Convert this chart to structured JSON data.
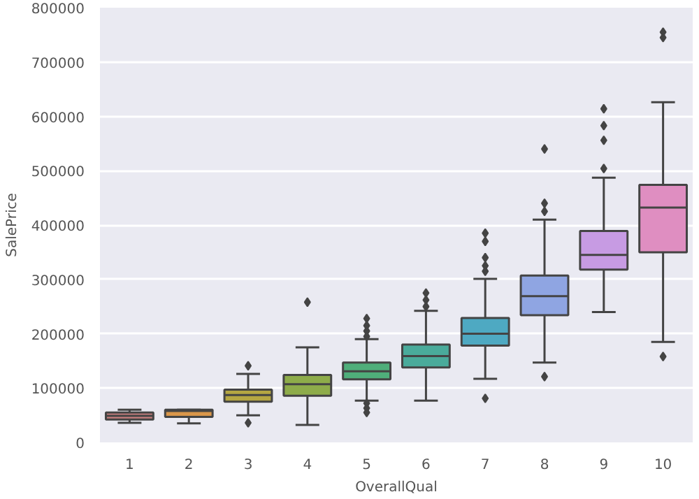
{
  "chart_data": {
    "type": "box",
    "xlabel": "OverallQual",
    "ylabel": "SalePrice",
    "categories": [
      "1",
      "2",
      "3",
      "4",
      "5",
      "6",
      "7",
      "8",
      "9",
      "10"
    ],
    "colors": [
      "#c87e7e",
      "#d9964a",
      "#b5a642",
      "#8eac4a",
      "#4fae7a",
      "#4aab9b",
      "#4ea9c2",
      "#8fa5e2",
      "#c79be3",
      "#df8ec1"
    ],
    "boxes": [
      {
        "low": 36000,
        "q1": 42000,
        "median": 49000,
        "q3": 55000,
        "high": 60000
      },
      {
        "low": 35000,
        "q1": 47000,
        "median": 58000,
        "q3": 60000,
        "high": 60000
      },
      {
        "low": 50000,
        "q1": 75000,
        "median": 87000,
        "q3": 97000,
        "high": 126000,
        "outliers": [
          141000,
          36000
        ]
      },
      {
        "low": 32000,
        "q1": 86000,
        "median": 107000,
        "q3": 124000,
        "high": 175000,
        "outliers": [
          258000
        ]
      },
      {
        "low": 77000,
        "q1": 116000,
        "median": 131000,
        "q3": 147000,
        "high": 190000,
        "outliers": [
          195000,
          205000,
          215000,
          228000,
          72000,
          63000,
          55000
        ]
      },
      {
        "low": 77000,
        "q1": 138000,
        "median": 159000,
        "q3": 180000,
        "high": 242000,
        "outliers": [
          250000,
          262000,
          275000
        ]
      },
      {
        "low": 117000,
        "q1": 178000,
        "median": 200000,
        "q3": 229000,
        "high": 301000,
        "outliers": [
          81000,
          315000,
          325000,
          340000,
          370000,
          385000
        ]
      },
      {
        "low": 147000,
        "q1": 234000,
        "median": 269000,
        "q3": 307000,
        "high": 410000,
        "outliers": [
          121000,
          425000,
          440000,
          540000
        ]
      },
      {
        "low": 240000,
        "q1": 318000,
        "median": 345000,
        "q3": 389000,
        "high": 487000,
        "outliers": [
          504000,
          556000,
          583000,
          614000
        ]
      },
      {
        "low": 185000,
        "q1": 350000,
        "median": 432000,
        "q3": 474000,
        "high": 626000,
        "outliers": [
          158000,
          745000,
          755000
        ]
      }
    ],
    "ylim": [
      0,
      800000
    ],
    "yticks": [
      0,
      100000,
      200000,
      300000,
      400000,
      500000,
      600000,
      700000,
      800000
    ],
    "grid": "y",
    "marker": "diamond"
  }
}
